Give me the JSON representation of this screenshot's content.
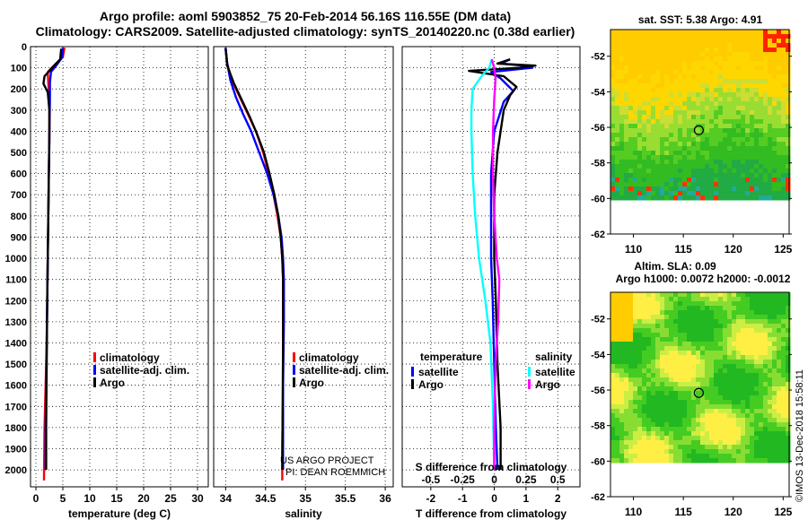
{
  "header": {
    "line1": "Argo profile: aoml 5903852_75 20-Feb-2014 56.16S 116.55E (DM data)",
    "line2": "Climatology: CARS2009. Satellite-adjusted climatology: synTS_20140220.nc (0.38d earlier)"
  },
  "colors": {
    "climatology": "#ff0000",
    "satellite": "#0000ff",
    "argo": "#000000",
    "salinity_satellite": "#00ffff",
    "salinity_argo": "#ff00ff"
  },
  "depth_axis": {
    "range": [
      0,
      2080
    ],
    "ticks": [
      0,
      100,
      200,
      300,
      400,
      500,
      600,
      700,
      800,
      900,
      1000,
      1100,
      1200,
      1300,
      1400,
      1500,
      1600,
      1700,
      1800,
      1900,
      2000
    ]
  },
  "chart_data": [
    {
      "type": "line",
      "id": "temperature",
      "xlabel": "temperature (deg C)",
      "xlim": [
        -1,
        32
      ],
      "xticks": [
        0,
        5,
        10,
        15,
        20,
        25,
        30
      ],
      "legend": [
        "climatology",
        "satellite-adj. clim.",
        "Argo"
      ],
      "series": [
        {
          "name": "climatology",
          "color": "#ff0000",
          "x": [
            5.3,
            5.0,
            3.5,
            2.2,
            2.3,
            2.5,
            2.5,
            2.4,
            2.3,
            2.2,
            2.1,
            2.0,
            1.8,
            1.6,
            1.5
          ],
          "y": [
            5,
            50,
            85,
            120,
            170,
            250,
            400,
            600,
            800,
            1000,
            1200,
            1400,
            1600,
            1800,
            2050
          ]
        },
        {
          "name": "satellite-adj. clim.",
          "color": "#0000ff",
          "x": [
            5.0,
            4.9,
            3.9,
            2.8,
            2.6,
            2.6,
            2.5,
            2.4,
            2.3,
            2.2,
            2.1,
            2.0,
            1.9,
            1.8,
            1.8
          ],
          "y": [
            5,
            50,
            85,
            120,
            170,
            250,
            400,
            600,
            800,
            1000,
            1200,
            1400,
            1600,
            1800,
            2000
          ]
        },
        {
          "name": "Argo",
          "color": "#000000",
          "x": [
            4.7,
            4.5,
            3.2,
            1.6,
            1.4,
            2.2,
            2.5,
            2.5,
            2.4,
            2.3,
            2.2,
            2.1,
            2.0,
            1.9,
            1.9
          ],
          "y": [
            10,
            60,
            95,
            140,
            175,
            215,
            300,
            450,
            600,
            800,
            1000,
            1200,
            1500,
            1800,
            2000
          ]
        }
      ]
    },
    {
      "type": "line",
      "id": "salinity",
      "xlabel": "salinity",
      "xlim": [
        33.85,
        36.1
      ],
      "xticks": [
        34,
        34.5,
        35,
        35.5,
        36
      ],
      "legend": [
        "climatology",
        "satellite-adj. clim.",
        "Argo"
      ],
      "credit": [
        "US ARGO PROJECT",
        "PI: DEAN ROEMMICH"
      ],
      "series": [
        {
          "name": "climatology",
          "color": "#ff0000",
          "x": [
            34.0,
            34.02,
            34.08,
            34.18,
            34.28,
            34.38,
            34.47,
            34.54,
            34.6,
            34.65,
            34.69,
            34.71,
            34.72,
            34.72,
            34.72,
            34.71,
            34.71
          ],
          "y": [
            5,
            80,
            160,
            240,
            320,
            400,
            500,
            600,
            700,
            800,
            900,
            1000,
            1100,
            1300,
            1600,
            1900,
            2050
          ]
        },
        {
          "name": "satellite-adj. clim.",
          "color": "#0000ff",
          "x": [
            34.0,
            34.02,
            34.06,
            34.13,
            34.22,
            34.32,
            34.42,
            34.52,
            34.6,
            34.66,
            34.7,
            34.72,
            34.73,
            34.73,
            34.72,
            34.72
          ],
          "y": [
            5,
            80,
            160,
            240,
            320,
            400,
            500,
            600,
            700,
            800,
            900,
            1000,
            1100,
            1300,
            1600,
            2000
          ]
        },
        {
          "name": "Argo",
          "color": "#000000",
          "x": [
            34.0,
            34.02,
            34.1,
            34.2,
            34.3,
            34.39,
            34.48,
            34.55,
            34.61,
            34.66,
            34.69,
            34.71,
            34.72,
            34.72,
            34.71
          ],
          "y": [
            10,
            90,
            170,
            250,
            330,
            410,
            500,
            600,
            700,
            800,
            900,
            1000,
            1100,
            1400,
            2000
          ]
        }
      ]
    },
    {
      "type": "line",
      "id": "difference",
      "xlabel": "T difference from climatology",
      "top_xlabel": "S difference from climatology",
      "xlim": [
        -2.9,
        2.7
      ],
      "xticks": [
        -2,
        -1,
        0,
        1,
        2
      ],
      "s_xlim": [
        -0.725,
        0.675
      ],
      "s_xticks": [
        -0.5,
        -0.25,
        0,
        0.25,
        0.5
      ],
      "s_xticklabels": [
        "-0.5",
        "-0.25",
        "0",
        "0.25",
        "0.5"
      ],
      "legend_temperature": {
        "title": "temperature",
        "items": [
          "satellite",
          "Argo"
        ]
      },
      "legend_salinity": {
        "title": "salinity",
        "items": [
          "satellite",
          "Argo"
        ]
      },
      "series": [
        {
          "name": "T satellite",
          "color": "#0000ff",
          "axis": "T",
          "x": [
            0.5,
            0.2,
            0.9,
            1.2,
            -0.1,
            0.2,
            0.6,
            0.3,
            0.0,
            -0.1,
            -0.1,
            -0.1,
            -0.05,
            0.0,
            0.05,
            0.1
          ],
          "y": [
            60,
            80,
            90,
            100,
            120,
            150,
            210,
            260,
            400,
            600,
            800,
            1000,
            1200,
            1500,
            1800,
            2000
          ]
        },
        {
          "name": "T Argo",
          "color": "#000000",
          "axis": "T",
          "x": [
            0.5,
            0.1,
            1.3,
            0.8,
            -0.8,
            0.3,
            0.7,
            0.5,
            0.3,
            0.1,
            0.0,
            0.0,
            0.05,
            0.1,
            0.2,
            0.2
          ],
          "y": [
            60,
            80,
            90,
            100,
            115,
            140,
            190,
            230,
            300,
            500,
            700,
            1000,
            1200,
            1500,
            1800,
            2000
          ]
        },
        {
          "name": "S satellite",
          "color": "#00ffff",
          "axis": "S",
          "x": [
            -0.02,
            -0.04,
            -0.1,
            -0.17,
            -0.18,
            -0.18,
            -0.17,
            -0.15,
            -0.12,
            -0.07,
            -0.03,
            -0.01,
            0.0
          ],
          "y": [
            60,
            100,
            140,
            200,
            300,
            400,
            600,
            800,
            1000,
            1200,
            1400,
            1700,
            2000
          ]
        },
        {
          "name": "S Argo",
          "color": "#ff00ff",
          "axis": "S",
          "x": [
            -0.02,
            0.0,
            0.01,
            0.0,
            -0.01,
            -0.01,
            0.0,
            0.02,
            0.04,
            0.03,
            0.01,
            0.0,
            0.0
          ],
          "y": [
            60,
            100,
            150,
            250,
            400,
            600,
            800,
            1000,
            1100,
            1300,
            1500,
            1800,
            2000
          ]
        }
      ]
    }
  ],
  "maps": {
    "sst": {
      "title": "sat. SST: 5.38 Argo: 4.91",
      "xticks": [
        110,
        115,
        120,
        125
      ],
      "yticklabels": [
        "-52",
        "-54",
        "-56",
        "-58",
        "-60",
        "-62"
      ],
      "argo_marker": {
        "lon": 116.55,
        "lat": -56.16
      }
    },
    "sla": {
      "title_line1": "Altim. SLA: 0.09",
      "title_line2": "Argo h1000: 0.0072 h2000: -0.0012",
      "xticks": [
        110,
        115,
        120,
        125
      ],
      "yticklabels": [
        "-52",
        "-54",
        "-56",
        "-58",
        "-60",
        "-62"
      ],
      "argo_marker": {
        "lon": 116.55,
        "lat": -56.16
      }
    }
  },
  "watermark": "©IMOS 13-Dec-2018 15:58:11"
}
